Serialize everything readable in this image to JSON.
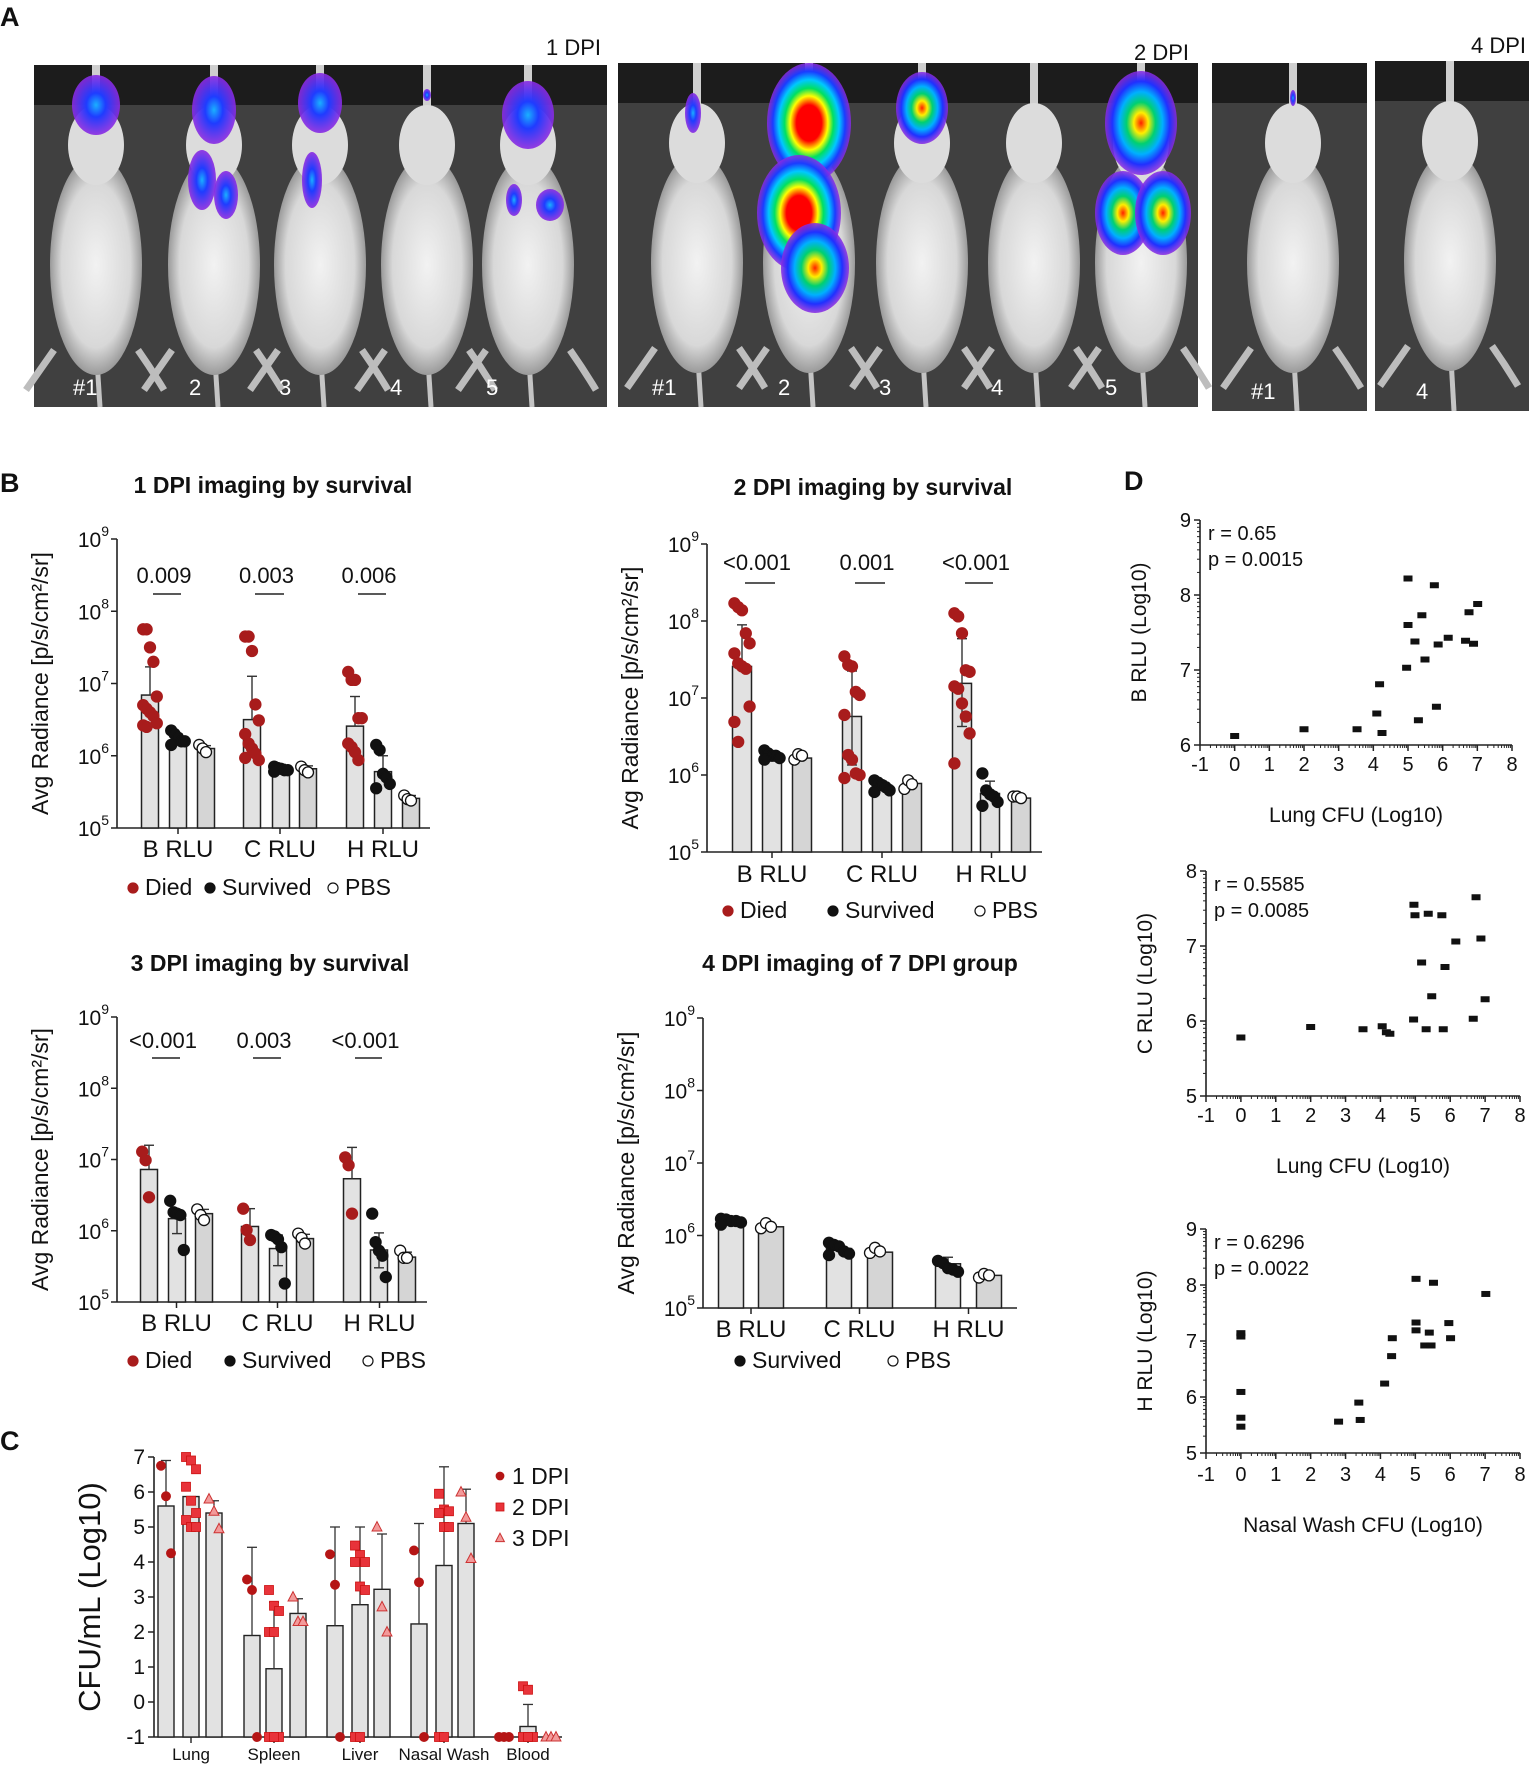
{
  "panel_labels": {
    "A": "A",
    "B": "B",
    "C": "C",
    "D": "D"
  },
  "panel_a": {
    "groups": [
      {
        "label": "1 DPI",
        "mice": [
          "#1",
          "2",
          "3",
          "4",
          "5"
        ]
      },
      {
        "label": "2 DPI",
        "mice": [
          "#1",
          "2",
          "3",
          "4",
          "5"
        ]
      },
      {
        "label": "",
        "mice": [
          "#1"
        ]
      },
      {
        "label": "4 DPI",
        "mice": [
          "4"
        ]
      }
    ]
  },
  "colors": {
    "died": "#a81c1c",
    "survived": "#111111",
    "pbs": "#ffffff",
    "bar": "#e2e2e2",
    "bar_pbs": "#d5d5d5",
    "dpi1": "#b51515",
    "dpi2": "#e8333a",
    "dpi3": "#f29a9a"
  },
  "chart_data": [
    {
      "type": "bar",
      "title": "1 DPI imaging by survival",
      "ylabel": "Avg Radiance [p/s/cm²/sr]",
      "yscale": "log",
      "ylim_log10": [
        5,
        9
      ],
      "ytick_base": "10",
      "ytick_exponents": [
        5,
        6,
        7,
        8,
        9
      ],
      "categories": [
        "B RLU",
        "C RLU",
        "H RLU"
      ],
      "pvalues": [
        "0.009",
        "0.003",
        "0.006"
      ],
      "series": [
        {
          "name": "Died",
          "bars_log10": [
            6.84,
            6.5,
            6.41
          ],
          "err_hi": [
            7.23,
            7.1,
            6.82
          ],
          "err_lo": [
            null,
            null,
            null
          ],
          "points_log10": [
            [
              7.75,
              7.75,
              7.5,
              7.3,
              6.82,
              6.7,
              6.65,
              6.6,
              6.55,
              6.45,
              6.42,
              6.4
            ],
            [
              7.65,
              7.65,
              7.45,
              6.71,
              6.49,
              6.3,
              6.17,
              6.1,
              6.03,
              5.94,
              5.97
            ],
            [
              7.16,
              7.05,
              7.05,
              6.52,
              6.52,
              6.17,
              6.12,
              6.05,
              5.94
            ]
          ]
        },
        {
          "name": "Survived",
          "bars_log10": [
            6.19,
            5.84,
            5.78
          ],
          "err_hi": [
            6.3,
            5.88,
            6.0
          ],
          "err_lo": [
            null,
            null,
            null
          ],
          "points_log10": [
            [
              6.35,
              6.3,
              6.25,
              6.2,
              6.2,
              6.15
            ],
            [
              5.85,
              5.83,
              5.82,
              5.8,
              5.8,
              5.78
            ],
            [
              6.15,
              6.08,
              5.75,
              5.7,
              5.61,
              5.55
            ]
          ]
        },
        {
          "name": "PBS",
          "bars_log10": [
            6.1,
            5.82,
            5.41
          ],
          "err_hi": [
            6.14,
            5.86,
            5.45
          ],
          "err_lo": [
            null,
            null,
            null
          ],
          "points_log10": [
            [
              6.15,
              6.1,
              6.05
            ],
            [
              5.85,
              5.8,
              5.77
            ],
            [
              5.45,
              5.4,
              5.38
            ]
          ]
        }
      ]
    },
    {
      "type": "bar",
      "title": "2 DPI imaging by survival",
      "ylabel": "Avg Radiance [p/s/cm²/sr]",
      "yscale": "log",
      "ylim_log10": [
        5,
        9
      ],
      "ytick_base": "10",
      "ytick_exponents": [
        5,
        6,
        7,
        8,
        9
      ],
      "categories": [
        "B RLU",
        "C RLU",
        "H RLU"
      ],
      "pvalues": [
        "<0.001",
        "0.001",
        "<0.001"
      ],
      "series": [
        {
          "name": "Died",
          "bars_log10": [
            7.41,
            6.76,
            7.19
          ],
          "err_hi": [
            7.95,
            7.35,
            7.77
          ],
          "err_lo": [
            null,
            6.13,
            6.63
          ],
          "points_log10": [
            [
              8.23,
              8.18,
              8.14,
              7.84,
              7.71,
              7.58,
              7.45,
              7.41,
              7.38,
              6.89,
              6.69,
              6.43
            ],
            [
              7.54,
              7.43,
              7.41,
              7.08,
              7.04,
              6.78,
              6.26,
              6.2,
              6.02,
              6.0,
              5.96
            ],
            [
              8.1,
              8.06,
              7.84,
              7.36,
              7.34,
              7.15,
              7.12,
              6.93,
              6.76,
              6.54,
              6.15
            ]
          ]
        },
        {
          "name": "Survived",
          "bars_log10": [
            6.26,
            5.87,
            5.76
          ],
          "err_hi": [
            6.3,
            5.92,
            5.92
          ],
          "err_lo": [
            null,
            null,
            null
          ],
          "points_log10": [
            [
              6.32,
              6.28,
              6.25,
              6.25,
              6.22,
              6.2
            ],
            [
              5.93,
              5.9,
              5.87,
              5.84,
              5.8,
              5.78
            ],
            [
              6.02,
              5.8,
              5.75,
              5.72,
              5.65,
              5.6
            ]
          ]
        },
        {
          "name": "PBS",
          "bars_log10": [
            6.22,
            5.89,
            5.7
          ],
          "err_hi": [
            6.26,
            5.93,
            5.72
          ],
          "err_lo": [
            null,
            null,
            null
          ],
          "points_log10": [
            [
              6.2,
              6.27,
              6.25
            ],
            [
              5.82,
              5.93,
              5.88
            ],
            [
              5.72,
              5.72,
              5.7
            ]
          ]
        }
      ]
    },
    {
      "type": "bar",
      "title": "3 DPI imaging by survival",
      "ylabel": "Avg Radiance [p/s/cm²/sr]",
      "yscale": "log",
      "ylim_log10": [
        5,
        9
      ],
      "ytick_base": "10",
      "ytick_exponents": [
        5,
        6,
        7,
        8,
        9
      ],
      "categories": [
        "B RLU",
        "C RLU",
        "H RLU"
      ],
      "pvalues": [
        "<0.001",
        "0.003",
        "<0.001"
      ],
      "series": [
        {
          "name": "Died",
          "bars_log10": [
            6.86,
            6.06,
            6.73
          ],
          "err_hi": [
            7.2,
            6.31,
            7.17
          ],
          "err_lo": [
            null,
            5.84,
            null
          ],
          "points_log10": [
            [
              7.11,
              6.99,
              6.47
            ],
            [
              6.31,
              6.01,
              5.87
            ],
            [
              7.03,
              6.92,
              6.24
            ]
          ]
        },
        {
          "name": "Survived",
          "bars_log10": [
            6.17,
            5.75,
            5.73
          ],
          "err_hi": [
            6.28,
            5.94,
            5.97
          ],
          "err_lo": [
            5.96,
            5.51,
            5.48
          ],
          "points_log10": [
            [
              6.42,
              6.26,
              6.24,
              6.22,
              5.73
            ],
            [
              5.94,
              5.92,
              5.88,
              5.77,
              5.26
            ],
            [
              6.24,
              5.84,
              5.72,
              5.65,
              5.35
            ]
          ]
        },
        {
          "name": "PBS",
          "bars_log10": [
            6.24,
            5.89,
            5.63
          ],
          "err_hi": [
            6.3,
            5.95,
            5.7
          ],
          "err_lo": [
            null,
            null,
            null
          ],
          "points_log10": [
            [
              6.3,
              6.22,
              6.15
            ],
            [
              5.96,
              5.9,
              5.82
            ],
            [
              5.72,
              5.62,
              5.62
            ]
          ]
        }
      ]
    },
    {
      "type": "bar",
      "title": "4 DPI imaging of 7 DPI group",
      "ylabel": "Avg Radiance [p/s/cm²/sr]",
      "yscale": "log",
      "ylim_log10": [
        5,
        9
      ],
      "ytick_base": "10",
      "ytick_exponents": [
        5,
        6,
        7,
        8,
        9
      ],
      "categories": [
        "B RLU",
        "C RLU",
        "H RLU"
      ],
      "pvalues": [],
      "series": [
        {
          "name": "Survived",
          "bars_log10": [
            6.21,
            5.82,
            5.61
          ],
          "err_hi": [
            6.24,
            5.88,
            5.7
          ],
          "err_lo": [
            null,
            null,
            null
          ],
          "points_log10": [
            [
              6.23,
              6.22,
              6.2,
              6.2,
              6.18,
              6.15
            ],
            [
              5.9,
              5.87,
              5.85,
              5.78,
              5.75,
              5.73
            ],
            [
              5.65,
              5.62,
              5.55,
              5.53,
              5.5
            ]
          ]
        },
        {
          "name": "PBS",
          "bars_log10": [
            6.12,
            5.77,
            5.45
          ],
          "err_hi": [
            6.15,
            5.8,
            5.48
          ],
          "err_lo": [
            null,
            null,
            null
          ],
          "points_log10": [
            [
              6.1,
              6.17,
              6.12
            ],
            [
              5.76,
              5.83,
              5.78
            ],
            [
              5.42,
              5.47,
              5.45
            ]
          ]
        }
      ]
    },
    {
      "type": "bar",
      "title": "",
      "ylabel": "CFU/mL (Log10)",
      "ylim": [
        -1,
        7
      ],
      "yticks": [
        "-1",
        "0",
        "1",
        "2",
        "3",
        "4",
        "5",
        "6",
        "7"
      ],
      "categories": [
        "Lung",
        "Spleen",
        "Liver",
        "Nasal Wash",
        "Blood"
      ],
      "series": [
        {
          "name": "1 DPI",
          "marker": "circle",
          "bars": [
            5.6,
            1.9,
            2.18,
            2.23,
            -1
          ],
          "err_hi": [
            6.9,
            4.42,
            5.0,
            5.1,
            null
          ],
          "points": [
            [
              6.75,
              5.88,
              4.25
            ],
            [
              3.5,
              3.2,
              -1
            ],
            [
              4.22,
              3.35,
              -1
            ],
            [
              4.33,
              3.42,
              -1
            ],
            [
              -1,
              -1,
              -1
            ]
          ]
        },
        {
          "name": "2 DPI",
          "marker": "square",
          "bars": [
            5.87,
            0.95,
            2.78,
            3.9,
            -0.7
          ],
          "err_hi": [
            null,
            2.85,
            5.0,
            6.72,
            -0.07
          ],
          "points": [
            [
              7.0,
              6.9,
              6.65,
              6.15,
              5.75,
              5.4,
              5.2,
              5.0,
              5.0
            ],
            [
              3.2,
              2.75,
              2.6,
              2.0,
              2.0,
              -1,
              -1,
              -1
            ],
            [
              4.47,
              4.2,
              4.0,
              4.0,
              3.3,
              3.2,
              -1,
              -1
            ],
            [
              5.95,
              5.5,
              5.45,
              5.4,
              5.0,
              5.0,
              -1,
              -1
            ],
            [
              0.45,
              0.35,
              -1,
              -1,
              -1
            ]
          ]
        },
        {
          "name": "3 DPI",
          "marker": "triangle",
          "bars": [
            5.4,
            2.53,
            3.22,
            5.1,
            -1
          ],
          "err_hi": [
            5.75,
            2.95,
            4.8,
            6.08,
            null
          ],
          "points": [
            [
              5.8,
              5.45,
              4.95
            ],
            [
              3.0,
              2.3,
              2.3
            ],
            [
              5.0,
              2.72,
              2.0
            ],
            [
              6.0,
              5.28,
              4.1
            ],
            [
              -1,
              -1,
              -1
            ]
          ]
        }
      ]
    },
    {
      "type": "scatter",
      "xlabel": "Lung CFU (Log10)",
      "ylabel": "B RLU (Log10)",
      "r_text": "r = 0.65",
      "p_text": "p = 0.0015",
      "xlim": [
        -1,
        8
      ],
      "ylim": [
        6,
        9
      ],
      "xticks": [
        "-1",
        "0",
        "1",
        "2",
        "3",
        "4",
        "5",
        "6",
        "7",
        "8"
      ],
      "yticks": [
        "6",
        "7",
        "8",
        "9"
      ],
      "points": [
        [
          0,
          6.12
        ],
        [
          2,
          6.21
        ],
        [
          3.53,
          6.21
        ],
        [
          4.1,
          6.42
        ],
        [
          4.18,
          6.81
        ],
        [
          4.25,
          6.16
        ],
        [
          5.0,
          8.22
        ],
        [
          5.0,
          7.6
        ],
        [
          4.96,
          7.03
        ],
        [
          5.2,
          7.38
        ],
        [
          5.4,
          7.73
        ],
        [
          5.49,
          7.14
        ],
        [
          5.3,
          6.33
        ],
        [
          5.76,
          8.13
        ],
        [
          5.87,
          7.34
        ],
        [
          5.82,
          6.51
        ],
        [
          6.16,
          7.43
        ],
        [
          6.66,
          7.39
        ],
        [
          6.76,
          7.77
        ],
        [
          6.89,
          7.35
        ],
        [
          7.01,
          7.88
        ]
      ]
    },
    {
      "type": "scatter",
      "xlabel": "Lung CFU (Log10)",
      "ylabel": "C RLU (Log10)",
      "r_text": "r = 0.5585",
      "p_text": "p = 0.0085",
      "xlim": [
        -1,
        8
      ],
      "ylim": [
        5,
        8
      ],
      "xticks": [
        "-1",
        "0",
        "1",
        "2",
        "3",
        "4",
        "5",
        "6",
        "7",
        "8"
      ],
      "yticks": [
        "5",
        "6",
        "7",
        "8"
      ],
      "points": [
        [
          0,
          5.78
        ],
        [
          2,
          5.92
        ],
        [
          3.5,
          5.89
        ],
        [
          4.05,
          5.93
        ],
        [
          4.17,
          5.85
        ],
        [
          4.27,
          5.83
        ],
        [
          4.96,
          7.55
        ],
        [
          4.99,
          7.41
        ],
        [
          4.95,
          6.02
        ],
        [
          5.18,
          6.78
        ],
        [
          5.31,
          5.89
        ],
        [
          5.37,
          7.43
        ],
        [
          5.47,
          6.33
        ],
        [
          5.76,
          7.41
        ],
        [
          5.85,
          6.72
        ],
        [
          5.8,
          5.89
        ],
        [
          6.16,
          7.06
        ],
        [
          6.66,
          6.03
        ],
        [
          6.74,
          7.65
        ],
        [
          6.88,
          7.1
        ],
        [
          7.0,
          6.29
        ]
      ]
    },
    {
      "type": "scatter",
      "xlabel": "Nasal Wash CFU (Log10)",
      "ylabel": "H RLU (Log10)",
      "r_text": "r = 0.6296",
      "p_text": "p = 0.0022",
      "xlim": [
        -1,
        8
      ],
      "ylim": [
        5,
        9
      ],
      "xticks": [
        "-1",
        "0",
        "1",
        "2",
        "3",
        "4",
        "5",
        "6",
        "7",
        "8"
      ],
      "yticks": [
        "5",
        "6",
        "7",
        "8",
        "9"
      ],
      "points": [
        [
          0,
          7.14
        ],
        [
          0,
          7.08
        ],
        [
          0,
          6.09
        ],
        [
          0,
          5.63
        ],
        [
          0,
          5.47
        ],
        [
          2.8,
          5.56
        ],
        [
          3.38,
          5.9
        ],
        [
          3.42,
          5.59
        ],
        [
          4.12,
          6.24
        ],
        [
          4.34,
          7.05
        ],
        [
          4.32,
          6.73
        ],
        [
          5.02,
          8.11
        ],
        [
          5.02,
          7.33
        ],
        [
          5.02,
          7.19
        ],
        [
          5.27,
          6.92
        ],
        [
          5.4,
          7.15
        ],
        [
          5.45,
          6.92
        ],
        [
          5.52,
          8.04
        ],
        [
          5.96,
          7.32
        ],
        [
          6.01,
          7.05
        ],
        [
          7.02,
          7.84
        ]
      ]
    }
  ]
}
